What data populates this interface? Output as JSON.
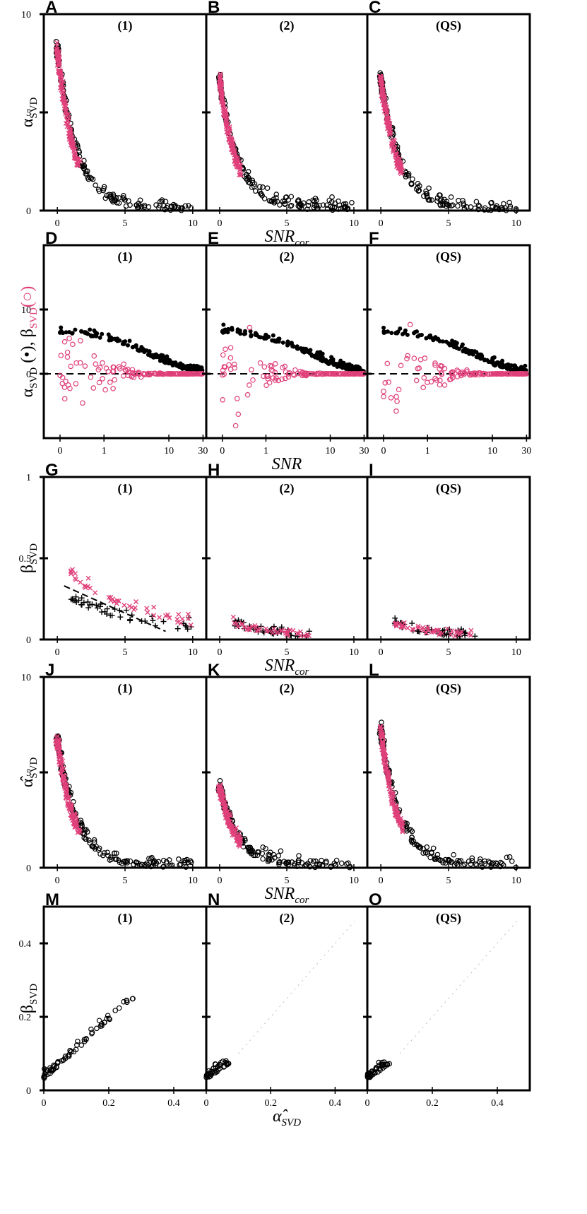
{
  "chart_data": {
    "type": "scatter",
    "layout": "5 rows x 3 columns of panels",
    "columns": [
      "(1)",
      "(2)",
      "(QS)"
    ],
    "colors": {
      "black": "#000000",
      "magenta": "#e0407a",
      "dashed": "#000000"
    },
    "rows": [
      {
        "letters": [
          "A",
          "B",
          "C"
        ],
        "xlabel": "SNR",
        "xlabel_sub": "cor",
        "ylabel": "α",
        "ylabel_sub": "SVD",
        "xticks": [
          "0",
          "5",
          "10"
        ],
        "xlim": [
          -1,
          11
        ],
        "yticks": [
          "0",
          "5",
          "10"
        ],
        "ylim": [
          0,
          10
        ],
        "series": [
          {
            "marker": "circle-open",
            "color": "#000000",
            "decay": "alpha"
          },
          {
            "marker": "x",
            "color": "#e0407a",
            "decay": "alpha-red"
          }
        ]
      },
      {
        "letters": [
          "D",
          "E",
          "F"
        ],
        "xlabel": "SNR",
        "xlabel_sub": "",
        "ylabel": "α",
        "ylabel_sub": "SVD",
        "ylabel_extra": "(•), β",
        "ylabel_extra_sub": "SVD",
        "ylabel_extra2": "(○)",
        "xscale": "log",
        "xticks": [
          "0",
          "1",
          "10",
          "30"
        ],
        "yticks": [
          "0",
          "10"
        ],
        "ylim": [
          -10,
          20
        ],
        "series": [
          {
            "marker": "dot",
            "color": "#000000"
          },
          {
            "marker": "circle-open",
            "color": "#e0407a"
          }
        ]
      },
      {
        "letters": [
          "G",
          "H",
          "I"
        ],
        "xlabel": "SNR",
        "xlabel_sub": "cor",
        "ylabel": "β",
        "ylabel_sub": "SVD",
        "xticks": [
          "0",
          "5",
          "10"
        ],
        "xlim": [
          -1,
          11
        ],
        "yticks": [
          "0",
          "0.5",
          "1"
        ],
        "ylim": [
          0,
          1
        ],
        "series": [
          {
            "marker": "plus",
            "color": "#000000"
          },
          {
            "marker": "x",
            "color": "#e0407a"
          }
        ]
      },
      {
        "letters": [
          "J",
          "K",
          "L"
        ],
        "xlabel": "SNR",
        "xlabel_sub": "cor",
        "ylabel": "α̂",
        "ylabel_sub": "SVD",
        "xticks": [
          "0",
          "5",
          "10"
        ],
        "xlim": [
          -1,
          11
        ],
        "yticks": [
          "0",
          "5",
          "10"
        ],
        "ylim": [
          0,
          10
        ],
        "series": [
          {
            "marker": "circle-open",
            "color": "#000000"
          },
          {
            "marker": "x",
            "color": "#e0407a"
          }
        ]
      },
      {
        "letters": [
          "M",
          "N",
          "O"
        ],
        "xlabel": "α̂",
        "xlabel_sub": "SVD",
        "ylabel": "β",
        "ylabel_sub": "SVD",
        "xticks": [
          "0",
          "0.2",
          "0.4"
        ],
        "xlim": [
          0,
          0.5
        ],
        "yticks": [
          "0",
          "0.2",
          "0.4"
        ],
        "ylim": [
          0,
          0.5
        ],
        "series": [
          {
            "marker": "circle-open",
            "color": "#000000"
          }
        ]
      }
    ]
  }
}
